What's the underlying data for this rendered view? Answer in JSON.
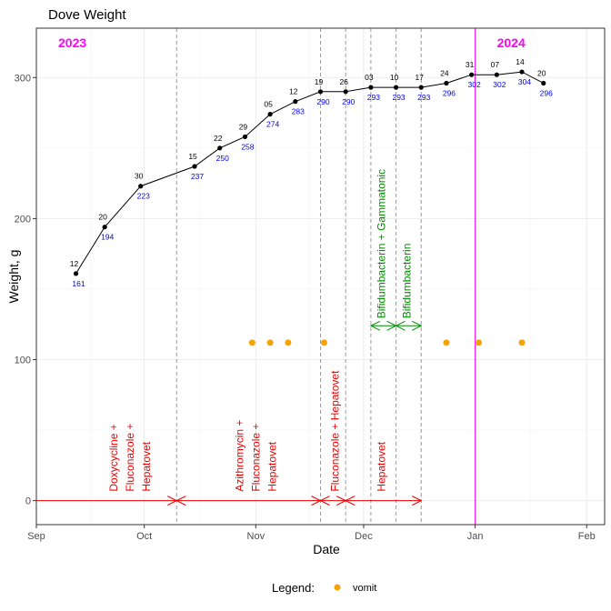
{
  "chart_data": {
    "type": "line",
    "title": "Dove Weight",
    "xlabel": "Date",
    "ylabel": "Weight, g",
    "x_range": [
      "2023-09-01",
      "2024-02-06"
    ],
    "y_range": [
      -17,
      335
    ],
    "grid": true,
    "x_ticks": [
      {
        "date": "2023-09-01",
        "label": "Sep"
      },
      {
        "date": "2023-10-01",
        "label": "Oct"
      },
      {
        "date": "2023-11-01",
        "label": "Nov"
      },
      {
        "date": "2023-12-01",
        "label": "Dec"
      },
      {
        "date": "2024-01-01",
        "label": "Jan"
      },
      {
        "date": "2024-02-01",
        "label": "Feb"
      }
    ],
    "y_ticks": [
      0,
      100,
      200,
      300
    ],
    "year_markers": [
      {
        "label": "2023",
        "date": "2023-09-01"
      },
      {
        "label": "2024",
        "date": "2024-01-01"
      }
    ],
    "weight_series": {
      "color": "#000000",
      "label_color": "#0000ee",
      "points": [
        {
          "date": "2023-09-12",
          "day": "12",
          "weight": 161
        },
        {
          "date": "2023-09-20",
          "day": "20",
          "weight": 194
        },
        {
          "date": "2023-09-30",
          "day": "30",
          "weight": 223
        },
        {
          "date": "2023-10-15",
          "day": "15",
          "weight": 237
        },
        {
          "date": "2023-10-22",
          "day": "22",
          "weight": 250
        },
        {
          "date": "2023-10-29",
          "day": "29",
          "weight": 258
        },
        {
          "date": "2023-11-05",
          "day": "05",
          "weight": 274
        },
        {
          "date": "2023-11-12",
          "day": "12",
          "weight": 283
        },
        {
          "date": "2023-11-19",
          "day": "19",
          "weight": 290
        },
        {
          "date": "2023-11-26",
          "day": "26",
          "weight": 290
        },
        {
          "date": "2023-12-03",
          "day": "03",
          "weight": 293
        },
        {
          "date": "2023-12-10",
          "day": "10",
          "weight": 293
        },
        {
          "date": "2023-12-17",
          "day": "17",
          "weight": 293
        },
        {
          "date": "2023-12-24",
          "day": "24",
          "weight": 296
        },
        {
          "date": "2023-12-31",
          "day": "31",
          "weight": 302
        },
        {
          "date": "2024-01-07",
          "day": "07",
          "weight": 302
        },
        {
          "date": "2024-01-14",
          "day": "14",
          "weight": 304
        },
        {
          "date": "2024-01-20",
          "day": "20",
          "weight": 296
        }
      ]
    },
    "vomit_events": {
      "legend_label": "vomit",
      "color": "#f5a300",
      "y": 112,
      "dates": [
        "2023-10-31",
        "2023-11-05",
        "2023-11-10",
        "2023-11-20",
        "2023-12-24",
        "2024-01-02",
        "2024-01-14"
      ]
    },
    "vertical_markers": {
      "gray": [
        "2023-10-10",
        "2023-11-19",
        "2023-11-26",
        "2023-12-03",
        "2023-12-10",
        "2023-12-17"
      ],
      "magenta": "2024-01-01"
    },
    "treatments_red": [
      {
        "start": "2023-09-01",
        "end": "2023-10-10",
        "lines": [
          "Doxycycline +",
          "Fluconazole +",
          "Hepatovet"
        ],
        "label_x": "2023-09-27"
      },
      {
        "start": "2023-10-10",
        "end": "2023-11-19",
        "lines": [
          "Azithromycin +",
          "Fluconazole +",
          "Hepatovet"
        ],
        "label_x": "2023-11-01"
      },
      {
        "start": "2023-11-19",
        "end": "2023-11-26",
        "lines": [
          "Fluconazole + Hepatovet"
        ],
        "label_x": "2023-11-23"
      },
      {
        "start": "2023-11-26",
        "end": "2023-12-17",
        "lines": [
          "Hepatovet"
        ],
        "label_x": "2023-12-06"
      }
    ],
    "treatments_green": [
      {
        "start": "2023-12-03",
        "end": "2023-12-10",
        "lines": [
          "Bifidumbacterin + Gammatonic"
        ],
        "label_x": "2023-12-06"
      },
      {
        "start": "2023-12-10",
        "end": "2023-12-17",
        "lines": [
          "Bifidumbacterin"
        ],
        "label_x": "2023-12-13"
      }
    ],
    "colors": {
      "treatment_red": "#ee0000",
      "treatment_green": "#008b00",
      "magenta": "#ff00ff",
      "dashed": "#999999"
    },
    "legend": {
      "title": "Legend:",
      "placement": "bottom"
    }
  }
}
